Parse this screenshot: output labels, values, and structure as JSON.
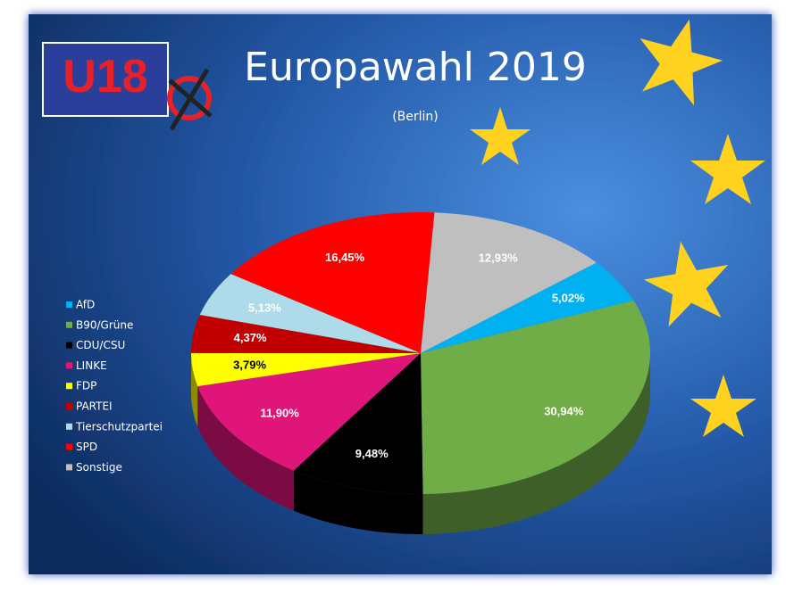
{
  "logo": "U18",
  "chart_data": {
    "type": "pie3d",
    "title": "Europawahl 2019",
    "subtitle": "(Berlin)",
    "categories": [
      "AfD",
      "B90/Grüne",
      "CDU/CSU",
      "LINKE",
      "FDP",
      "PARTEI",
      "Tierschutzpartei",
      "SPD",
      "Sonstige"
    ],
    "values": [
      5.02,
      30.94,
      9.48,
      11.9,
      3.79,
      4.37,
      5.13,
      16.45,
      12.93
    ],
    "value_labels": [
      "5,02%",
      "30,94%",
      "9,48%",
      "11,90%",
      "3,79%",
      "4,37%",
      "5,13%",
      "16,45%",
      "12,93%"
    ],
    "colors": [
      "#00b0f0",
      "#70ad47",
      "#000000",
      "#e0157a",
      "#ffff00",
      "#c00000",
      "#addbea",
      "#ff0000",
      "#bfbfbf"
    ],
    "legend": "left"
  }
}
